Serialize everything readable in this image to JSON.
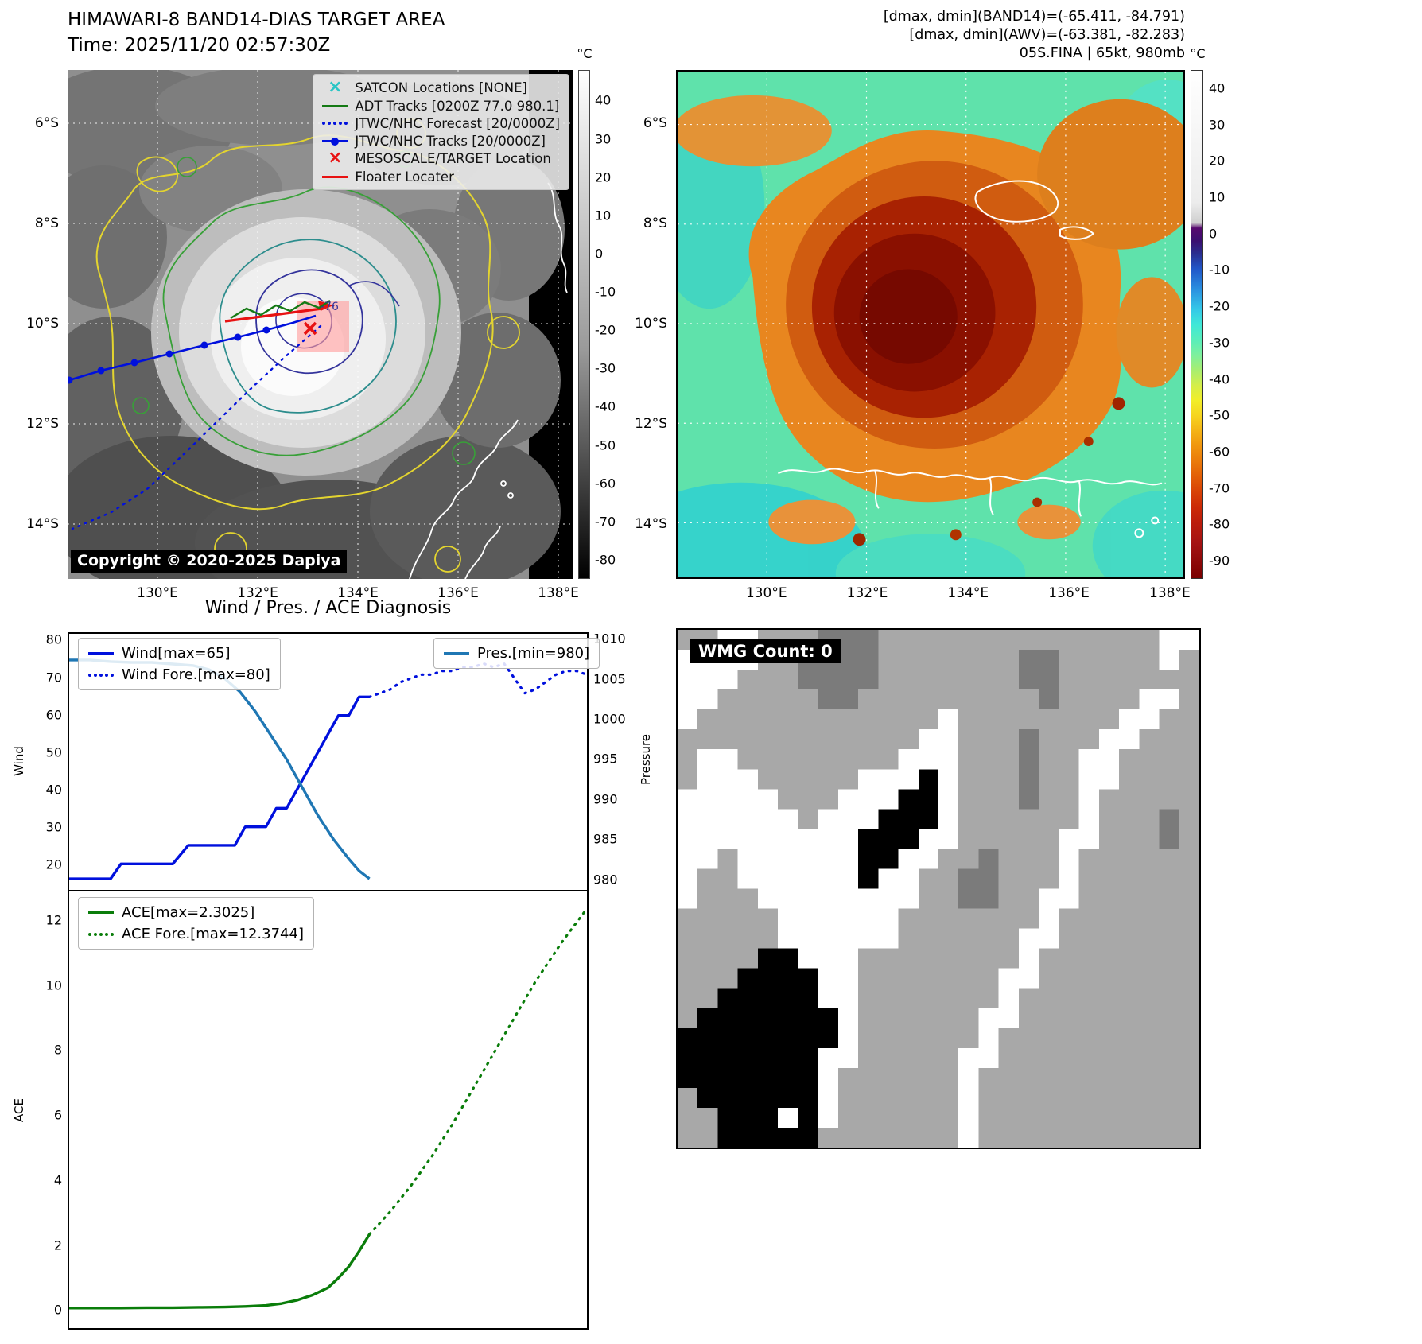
{
  "panel_band14": {
    "title": "HIMAWARI-8 BAND14-DIAS TARGET AREA",
    "time": "Time: 2025/11/20 02:57:30Z",
    "copyright": "Copyright © 2020-2025 Dapiya",
    "contour_label": "-76",
    "legend": [
      {
        "label": "SATCON Locations [NONE]",
        "marker": "x",
        "color": "#29c5c5"
      },
      {
        "label": "ADT Tracks [0200Z 77.0 980.1]",
        "marker": "line",
        "color": "#157a15"
      },
      {
        "label": "JTWC/NHC Forecast [20/0000Z]",
        "marker": "dotted",
        "color": "#0010dd"
      },
      {
        "label": "JTWC/NHC Tracks [20/0000Z]",
        "marker": "linedot",
        "color": "#0010dd"
      },
      {
        "label": "MESOSCALE/TARGET Location",
        "marker": "x",
        "color": "#e81212"
      },
      {
        "label": "Floater Locater",
        "marker": "line",
        "color": "#e81212"
      }
    ],
    "colorbar": {
      "unit": "°C",
      "ticks": [
        40,
        30,
        20,
        10,
        0,
        -10,
        -20,
        -30,
        -40,
        -50,
        -60,
        -70,
        -80
      ]
    },
    "x_ticks": [
      "130°E",
      "132°E",
      "134°E",
      "136°E",
      "138°E"
    ],
    "y_ticks": [
      "6°S",
      "8°S",
      "10°S",
      "12°S",
      "14°S"
    ]
  },
  "panel_awv": {
    "annotations": [
      "[dmax, dmin](BAND14)=(-65.411, -84.791)",
      "[dmax, dmin](AWV)=(-63.381, -82.283)",
      "05S.FINA | 65kt, 980mb"
    ],
    "colorbar": {
      "unit": "°C",
      "ticks": [
        40,
        30,
        20,
        10,
        0,
        -10,
        -20,
        -30,
        -40,
        -50,
        -60,
        -70,
        -80,
        -90
      ]
    },
    "x_ticks": [
      "130°E",
      "132°E",
      "134°E",
      "136°E",
      "138°E"
    ],
    "y_ticks": [
      "6°S",
      "8°S",
      "10°S",
      "12°S",
      "14°S"
    ]
  },
  "chart_data": [
    {
      "id": "wind_pres",
      "type": "line",
      "title": "Wind / Pres. / ACE Diagnosis",
      "ylabel_left": "Wind",
      "ylabel_right": "Pressure",
      "x_range": [
        0,
        100
      ],
      "y_left_range": [
        13,
        82
      ],
      "y_left_ticks": [
        20,
        30,
        40,
        50,
        60,
        70,
        80
      ],
      "y_right_range": [
        978.6,
        1010.8
      ],
      "y_right_ticks": [
        980,
        985,
        990,
        995,
        1000,
        1005,
        1010
      ],
      "legend_left": [
        {
          "label": "Wind[max=65]",
          "marker": "line",
          "color": "#0010dd"
        },
        {
          "label": "Wind Fore.[max=80]",
          "marker": "dotted",
          "color": "#0010dd"
        }
      ],
      "legend_right": [
        {
          "label": "Pres.[min=980]",
          "marker": "line",
          "color": "#1f77b4"
        }
      ],
      "series": [
        {
          "id": "wind_obs",
          "axis": "left",
          "style": "solid",
          "color": "#0010dd",
          "width": 3.4,
          "x": [
            0,
            3,
            6,
            8,
            10,
            12,
            14,
            17,
            20,
            23,
            26,
            29,
            32,
            34,
            36,
            38,
            40,
            42,
            44,
            46,
            48,
            50,
            52,
            54,
            56,
            58
          ],
          "y": [
            16,
            16,
            16,
            16,
            20,
            20,
            20,
            20,
            20,
            25,
            25,
            25,
            25,
            30,
            30,
            30,
            35,
            35,
            40,
            45,
            50,
            55,
            60,
            60,
            65,
            65
          ]
        },
        {
          "id": "wind_fore",
          "axis": "left",
          "style": "dotted",
          "color": "#0010dd",
          "width": 3.2,
          "x": [
            58,
            60,
            62,
            64,
            66,
            68,
            70,
            72,
            74,
            76,
            78,
            80,
            82,
            84,
            86,
            88,
            90,
            92,
            94,
            96,
            98,
            100
          ],
          "y": [
            65,
            66,
            67,
            69,
            70,
            71,
            71,
            72,
            72,
            73,
            73,
            74,
            73,
            74,
            70,
            66,
            67,
            69,
            71,
            72,
            72,
            71
          ]
        },
        {
          "id": "pressure",
          "axis": "right",
          "style": "solid",
          "color": "#1f77b4",
          "width": 3.4,
          "x": [
            0,
            4,
            8,
            12,
            16,
            20,
            24,
            27,
            30,
            33,
            36,
            39,
            42,
            45,
            48,
            51,
            54,
            56,
            58
          ],
          "y": [
            1007.5,
            1007.5,
            1007.3,
            1007.2,
            1007.2,
            1007.0,
            1006.8,
            1006.3,
            1005.2,
            1003.5,
            1001.0,
            998.0,
            995.0,
            991.5,
            988.0,
            985.0,
            982.5,
            981.0,
            980.0
          ]
        }
      ]
    },
    {
      "id": "ace",
      "type": "line",
      "ylabel_left": "ACE",
      "x_range": [
        0,
        100
      ],
      "y_left_range": [
        -0.6,
        12.9
      ],
      "y_left_ticks": [
        0,
        2,
        4,
        6,
        8,
        10,
        12
      ],
      "legend": [
        {
          "label": "ACE[max=2.3025]",
          "marker": "line",
          "color": "#0a7d0a"
        },
        {
          "label": "ACE Fore.[max=12.3744]",
          "marker": "dotted",
          "color": "#0a7d0a"
        }
      ],
      "series": [
        {
          "id": "ace_obs",
          "axis": "left",
          "style": "solid",
          "color": "#0a7d0a",
          "width": 3.4,
          "x": [
            0,
            5,
            10,
            15,
            20,
            25,
            30,
            34,
            38,
            41,
            44,
            47,
            50,
            52,
            54,
            56,
            58
          ],
          "y": [
            0.02,
            0.02,
            0.02,
            0.03,
            0.03,
            0.04,
            0.05,
            0.07,
            0.1,
            0.16,
            0.26,
            0.42,
            0.65,
            0.95,
            1.3,
            1.78,
            2.3
          ]
        },
        {
          "id": "ace_fore",
          "axis": "left",
          "style": "dotted",
          "color": "#0a7d0a",
          "width": 3.2,
          "x": [
            58,
            62,
            66,
            70,
            74,
            78,
            82,
            86,
            90,
            95,
            100
          ],
          "y": [
            2.3,
            3.0,
            3.8,
            4.7,
            5.7,
            6.8,
            7.9,
            9.0,
            10.1,
            11.3,
            12.37
          ]
        }
      ]
    }
  ],
  "panel_wmg": {
    "label": "WMG Count: 0",
    "palette": {
      "G": "#a8a8a8",
      "D": "#7b7b7b",
      "W": "#ffffff",
      "B": "#000000"
    },
    "grid": [
      "GGWWGGGDDDGGGGGGGGGGGGGGWW",
      "WWWWGGDDDDGGGGGGGDDGGGGGWG",
      "WWWGGGDDDDGGGGGGGDDGGGGGGG",
      "WWGGGGGDDGGGGGGGGGDGGGGWWG",
      "WGGGGGGGGGGGGWGGGGGGGGWWGG",
      "GGGGGGGGGGGGWWGGGDGGGWWGGG",
      "GWWGGGGGGGGWWWGGGDGGWWGGGG",
      "GWWWGGGGGWWWBWGGGDGGWWGGGG",
      "WWWWWGGGWWWBBWGGGDGGWGGGGG",
      "WWWWWWGWWWBBBWGGGGGGWGGGDG",
      "WWWWWWWWWBBBWWGGGGGWWGGGDG",
      "WWGWWWWWWBBWWGGDGGGWGGGGGG",
      "WGGWWWWWWBWWGGDDGGGWGGGGGG",
      "WGGGWWWWWWWWGGDDGGWWGGGGGG",
      "GGGGGWWWWWWGGGGGGGWGGGGGGG",
      "GGGGGWWWWWWGGGGGGWWGGGGGGG",
      "GGGGBBWWWGGGGGGGGWGGGGGGGG",
      "GGGBBBBWWGGGGGGGWWGGGGGGGG",
      "GGBBBBBWWGGGGGGGWGGGGGGGGG",
      "GBBBBBBBWGGGGGGWWGGGGGGGGG",
      "BBBBBBBBWGGGGGGWGGGGGGGGGG",
      "BBBBBBBWWGGGGGWWGGGGGGGGGG",
      "BBBBBBBWGGGGGGWGGGGGGGGGGG",
      "GBBBBBBWGGGGGGWGGGGGGGGGGG",
      "GGBBBWBWGGGGGGWGGGGGGGGGGG",
      "GGBBBBBGGGGGGGWGGGGGGGGGGG"
    ]
  }
}
